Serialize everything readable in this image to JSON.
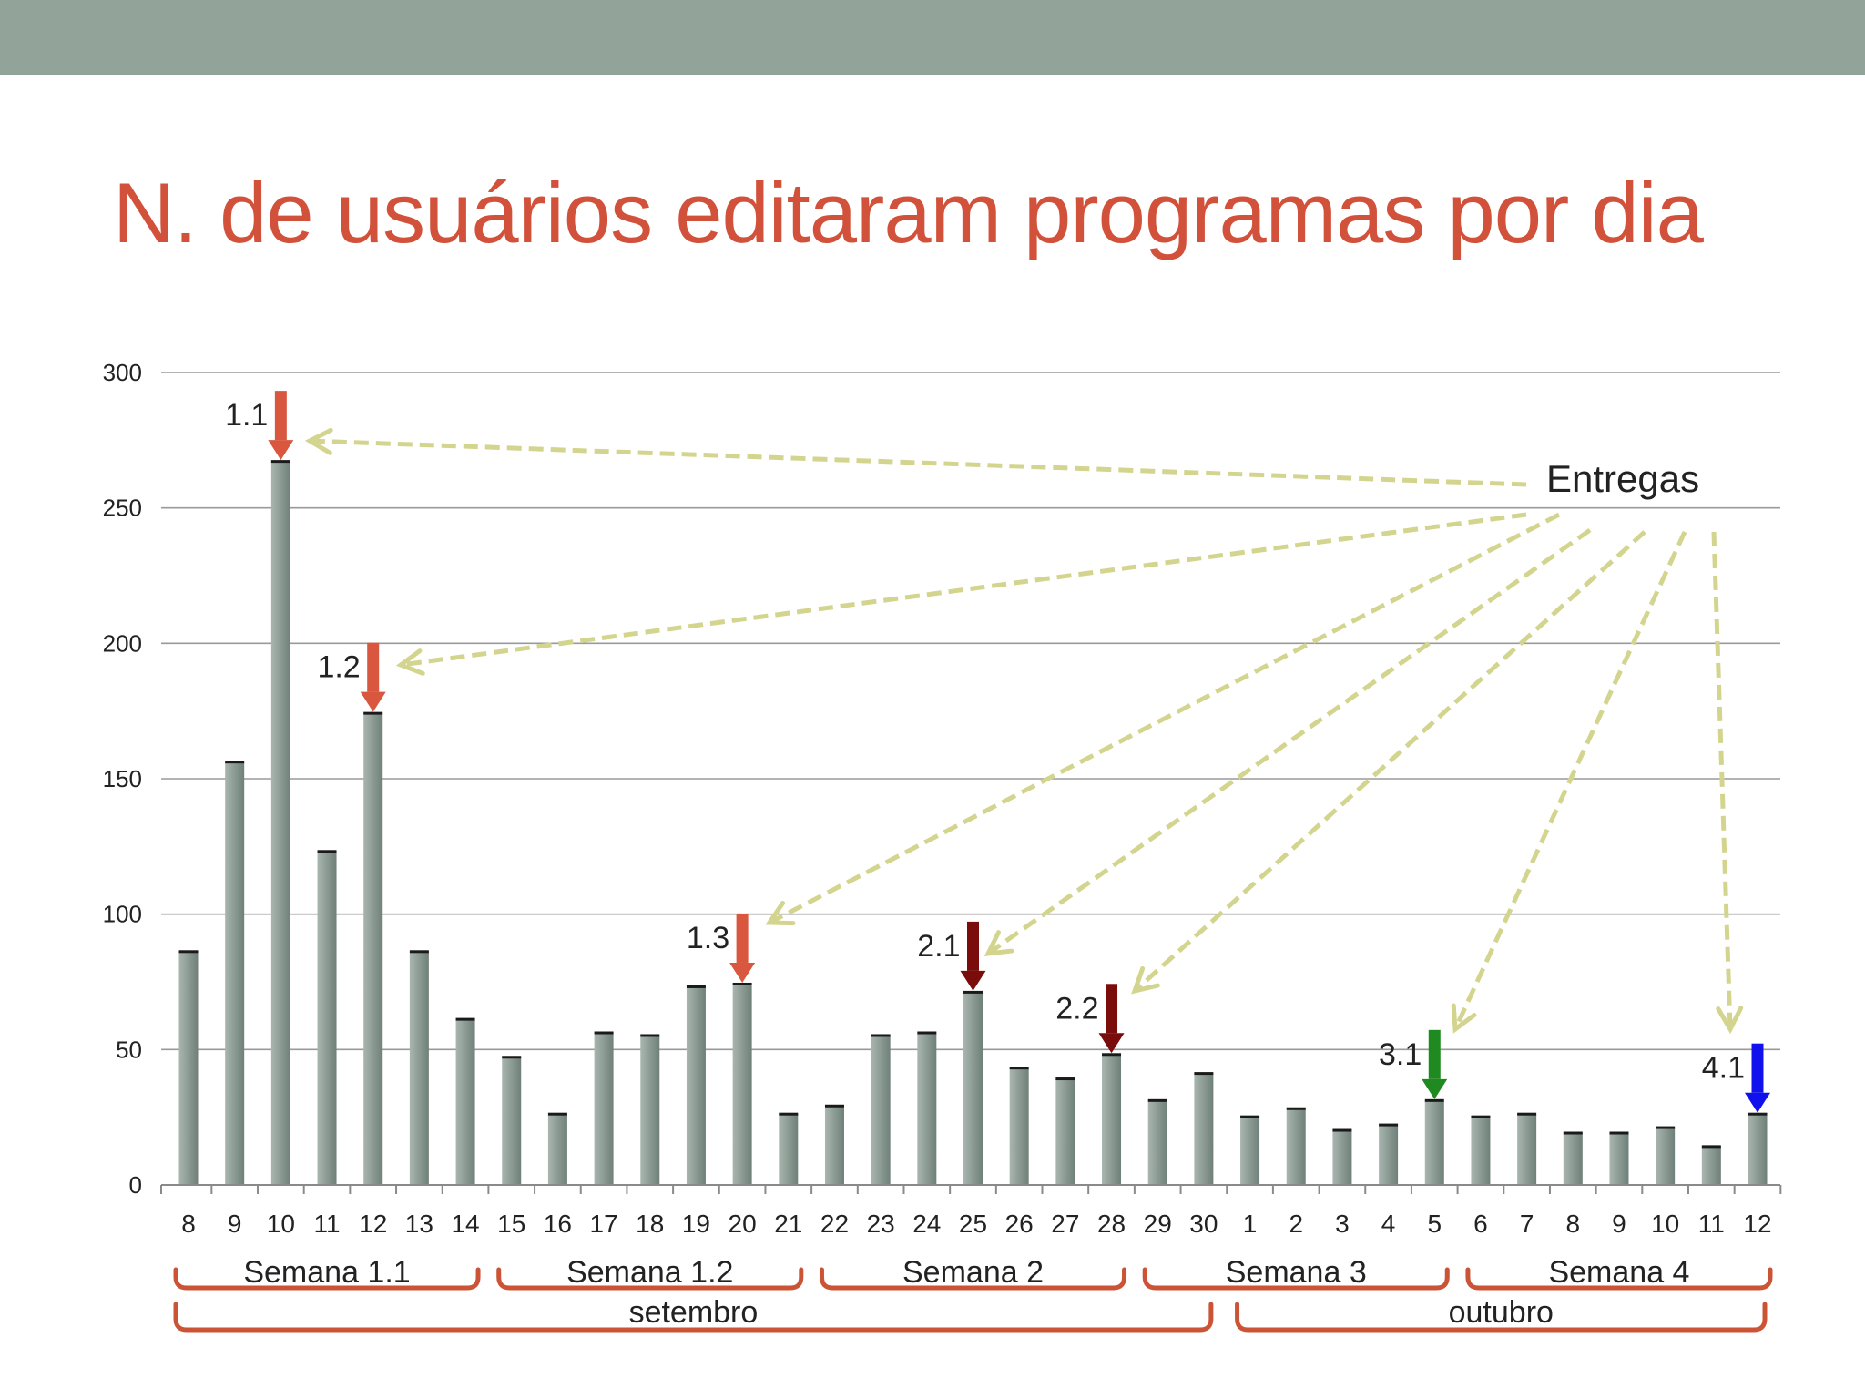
{
  "colors": {
    "top_band": "#92a39a",
    "title": "#d2513b",
    "bar": "#8e9e96",
    "bracket": "#cc5436",
    "dashed_arrow": "#d3d58e",
    "gridline": "#9a9a9a",
    "axis": "#8a8a8a"
  },
  "title": "N. de usuários editaram programas por dia",
  "chart_data": {
    "type": "bar",
    "title": "N. de usuários editaram programas por dia",
    "xlabel": "",
    "ylabel": "",
    "ylim": [
      0,
      300
    ],
    "yticks": [
      0,
      50,
      100,
      150,
      200,
      250,
      300
    ],
    "grid": true,
    "categories": [
      "8",
      "9",
      "10",
      "11",
      "12",
      "13",
      "14",
      "15",
      "16",
      "17",
      "18",
      "19",
      "20",
      "21",
      "22",
      "23",
      "24",
      "25",
      "26",
      "27",
      "28",
      "29",
      "30",
      "1",
      "2",
      "3",
      "4",
      "5",
      "6",
      "7",
      "8",
      "9",
      "10",
      "11",
      "12"
    ],
    "values": [
      86,
      156,
      267,
      123,
      174,
      86,
      61,
      47,
      26,
      56,
      55,
      73,
      74,
      26,
      29,
      55,
      56,
      71,
      43,
      39,
      48,
      31,
      41,
      25,
      28,
      20,
      22,
      31,
      25,
      26,
      19,
      19,
      21,
      14,
      26
    ],
    "deliveries": [
      {
        "label": "1.1",
        "category_index": 2,
        "color": "#d9573e"
      },
      {
        "label": "1.2",
        "category_index": 4,
        "color": "#d9573e"
      },
      {
        "label": "1.3",
        "category_index": 12,
        "color": "#d9573e"
      },
      {
        "label": "2.1",
        "category_index": 17,
        "color": "#7a0c0c"
      },
      {
        "label": "2.2",
        "category_index": 20,
        "color": "#7a0c0c"
      },
      {
        "label": "3.1",
        "category_index": 27,
        "color": "#1f8a1f"
      },
      {
        "label": "4.1",
        "category_index": 34,
        "color": "#1111ee"
      }
    ],
    "annotation_label": "Entregas",
    "weeks": [
      {
        "label": "Semana 1.1",
        "start_index": 0,
        "end_index": 6
      },
      {
        "label": "Semana 1.2",
        "start_index": 7,
        "end_index": 13
      },
      {
        "label": "Semana 2",
        "start_index": 14,
        "end_index": 20
      },
      {
        "label": "Semana 3",
        "start_index": 21,
        "end_index": 27
      },
      {
        "label": "Semana 4",
        "start_index": 28,
        "end_index": 34
      }
    ],
    "months": [
      {
        "label": "setembro",
        "start_index": 0,
        "end_index": 22
      },
      {
        "label": "outubro",
        "start_index": 23,
        "end_index": 34
      }
    ]
  }
}
